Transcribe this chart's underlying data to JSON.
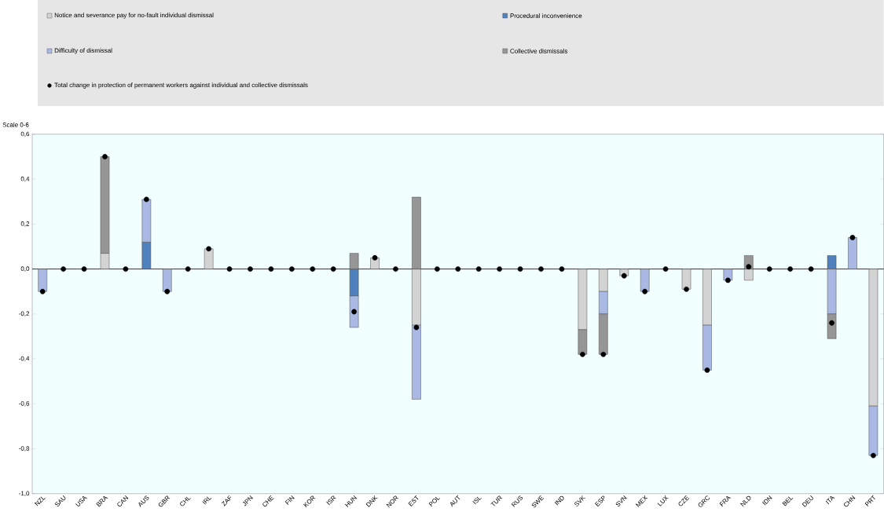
{
  "chart_data": {
    "type": "bar",
    "stacked": true,
    "ylabel": "Scale 0-6",
    "categories": [
      "NZL",
      "SAU",
      "USA",
      "BRA",
      "CAN",
      "AUS",
      "GBR",
      "CHL",
      "IRL",
      "ZAF",
      "JPN",
      "CHE",
      "FIN",
      "KOR",
      "ISR",
      "HUN",
      "DNK",
      "NOR",
      "EST",
      "POL",
      "AUT",
      "ISL",
      "TUR",
      "RUS",
      "SWE",
      "IND",
      "SVK",
      "ESP",
      "SVN",
      "MEX",
      "LUX",
      "CZE",
      "GRC",
      "FRA",
      "NLD",
      "IDN",
      "BEL",
      "DEU",
      "ITA",
      "CHN",
      "PRT"
    ],
    "series": [
      {
        "name": "Notice and severance pay for no-fault individual dismissal",
        "color": "#d3d3d3",
        "values": [
          0,
          0,
          0,
          0.07,
          0,
          0,
          0,
          0,
          0.09,
          0,
          0,
          0,
          0,
          0,
          0,
          0,
          0.05,
          0,
          -0.25,
          0,
          0,
          0,
          0,
          0,
          0,
          0,
          -0.27,
          -0.1,
          -0.03,
          0,
          0,
          -0.09,
          -0.25,
          0,
          -0.05,
          0,
          0,
          0,
          0,
          0,
          -0.61
        ]
      },
      {
        "name": "Procedural inconvenience",
        "color": "#4f81bd",
        "values": [
          0,
          0,
          0,
          0,
          0,
          0.12,
          0,
          0,
          0,
          0,
          0,
          0,
          0,
          0,
          0,
          -0.12,
          0,
          0,
          0,
          0,
          0,
          0,
          0,
          0,
          0,
          0,
          0,
          0,
          0,
          0,
          0,
          0,
          0,
          0,
          0,
          0,
          0,
          0,
          0.06,
          0,
          0
        ]
      },
      {
        "name": "Difficulty of dismissal",
        "color": "#a9b9e3",
        "values": [
          -0.1,
          0,
          0,
          0,
          0,
          0.19,
          -0.1,
          0,
          0,
          0,
          0,
          0,
          0,
          0,
          0,
          -0.14,
          0,
          0,
          -0.33,
          0,
          0,
          0,
          0,
          0,
          0,
          0,
          0,
          -0.1,
          0,
          -0.1,
          0,
          0,
          -0.2,
          -0.05,
          0,
          0,
          0,
          0,
          -0.2,
          0.14,
          -0.22
        ]
      },
      {
        "name": "Collective dismissals",
        "color": "#969696",
        "values": [
          0,
          0,
          0,
          0.43,
          0,
          0,
          0,
          0,
          0,
          0,
          0,
          0,
          0,
          0,
          0,
          0.07,
          0,
          0,
          0.32,
          0,
          0,
          0,
          0,
          0,
          0,
          0,
          -0.11,
          -0.18,
          0,
          0,
          0,
          0,
          0,
          0,
          0.06,
          0,
          0,
          0,
          -0.11,
          0,
          0
        ]
      },
      {
        "name": "Total change in protection of permanent workers against individual and collective dismissals",
        "type": "scatter",
        "marker": "circle",
        "color": "#000000",
        "values": [
          -0.1,
          0,
          0,
          0.5,
          0,
          0.31,
          -0.1,
          0,
          0.09,
          0,
          0,
          0,
          0,
          0,
          0,
          -0.19,
          0.05,
          0,
          -0.26,
          0,
          0,
          0,
          0,
          0,
          0,
          0,
          -0.38,
          -0.38,
          -0.03,
          -0.1,
          0,
          -0.09,
          -0.45,
          -0.05,
          0.01,
          0,
          0,
          0,
          -0.24,
          0.14,
          -0.83
        ]
      }
    ],
    "ylim": [
      -1.0,
      0.6
    ],
    "yticks": [
      {
        "value": -1.0,
        "label": "-1,0"
      },
      {
        "value": -0.8,
        "label": "-0,8"
      },
      {
        "value": -0.6,
        "label": "-0,6"
      },
      {
        "value": -0.4,
        "label": "-0,4"
      },
      {
        "value": -0.2,
        "label": "-0,2"
      },
      {
        "value": 0.0,
        "label": "0,0"
      },
      {
        "value": 0.2,
        "label": "0,2"
      },
      {
        "value": 0.4,
        "label": "0,4"
      },
      {
        "value": 0.6,
        "label": "0,6"
      }
    ],
    "ref_lines": [
      {
        "axis": "y",
        "value": 0,
        "color": "#000000"
      }
    ],
    "legend": "top"
  }
}
